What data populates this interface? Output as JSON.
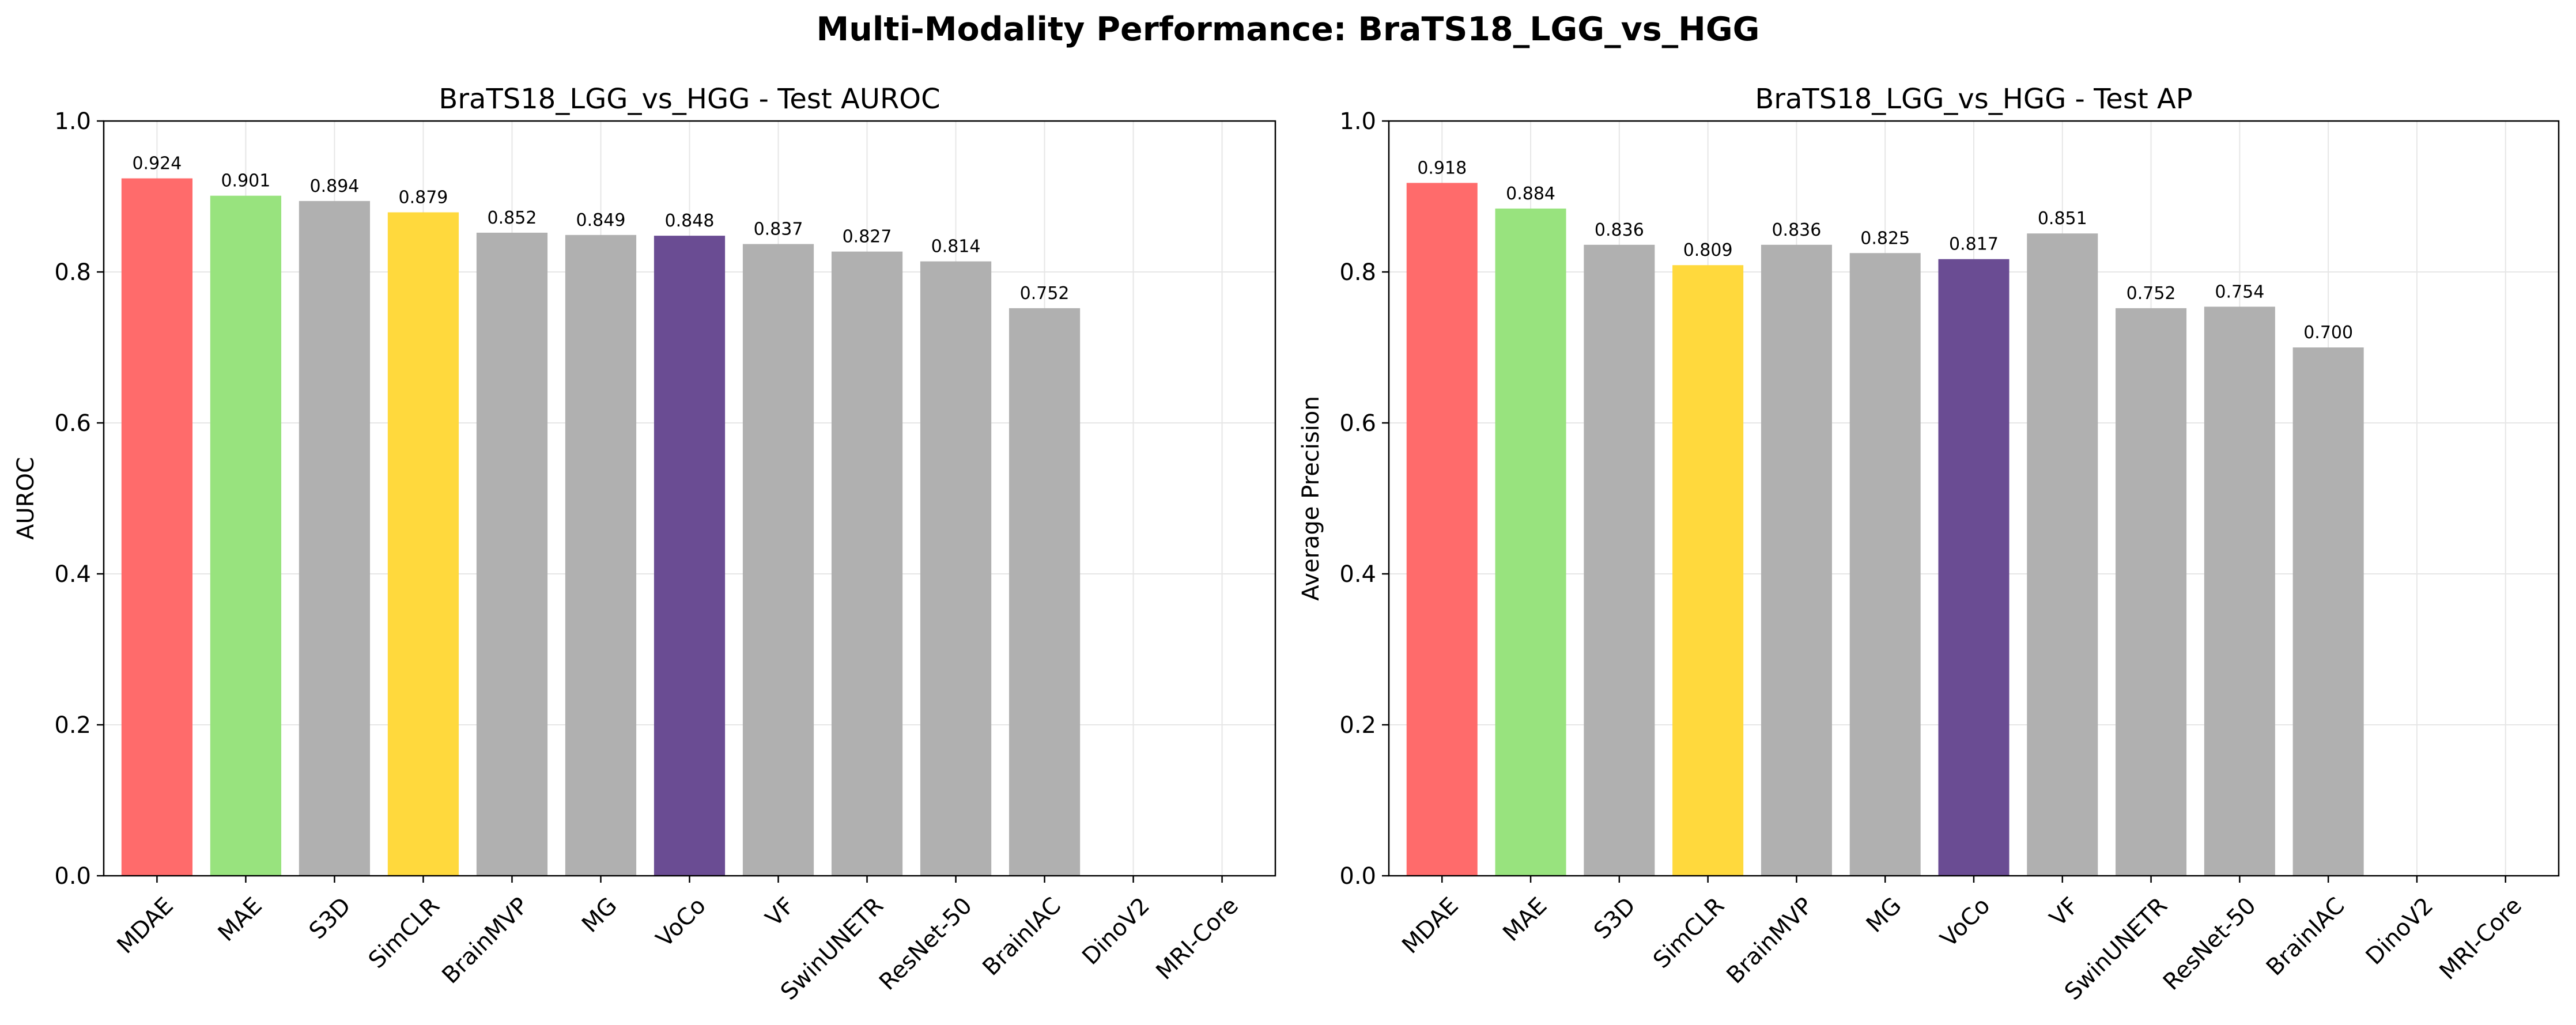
{
  "suptitle": "Multi-Modality Performance: BraTS18_LGG_vs_HGG",
  "colors": {
    "MDAE": "#ff6b6b",
    "MAE": "#98e37e",
    "SimCLR": "#ffd93d",
    "VoCo": "#6a4c93",
    "default": "#b0b0b0"
  },
  "chart_data": [
    {
      "type": "bar",
      "title": "BraTS18_LGG_vs_HGG - Test AUROC",
      "xlabel": "",
      "ylabel": "AUROC",
      "ylim": [
        0,
        1.0
      ],
      "yticks": [
        "0.0",
        "0.2",
        "0.4",
        "0.6",
        "0.8",
        "1.0"
      ],
      "grid": true,
      "categories": [
        "MDAE",
        "MAE",
        "S3D",
        "SimCLR",
        "BrainMVP",
        "MG",
        "VoCo",
        "VF",
        "SwinUNETR",
        "ResNet-50",
        "BrainIAC",
        "DinoV2",
        "MRI-Core"
      ],
      "values": [
        0.924,
        0.901,
        0.894,
        0.879,
        0.852,
        0.849,
        0.848,
        0.837,
        0.827,
        0.814,
        0.752,
        null,
        null
      ],
      "labels": [
        "0.924",
        "0.901",
        "0.894",
        "0.879",
        "0.852",
        "0.849",
        "0.848",
        "0.837",
        "0.827",
        "0.814",
        "0.752",
        "",
        ""
      ]
    },
    {
      "type": "bar",
      "title": "BraTS18_LGG_vs_HGG - Test AP",
      "xlabel": "",
      "ylabel": "Average Precision",
      "ylim": [
        0,
        1.0
      ],
      "yticks": [
        "0.0",
        "0.2",
        "0.4",
        "0.6",
        "0.8",
        "1.0"
      ],
      "grid": true,
      "categories": [
        "MDAE",
        "MAE",
        "S3D",
        "SimCLR",
        "BrainMVP",
        "MG",
        "VoCo",
        "VF",
        "SwinUNETR",
        "ResNet-50",
        "BrainIAC",
        "DinoV2",
        "MRI-Core"
      ],
      "values": [
        0.918,
        0.884,
        0.836,
        0.809,
        0.836,
        0.825,
        0.817,
        0.851,
        0.752,
        0.754,
        0.7,
        null,
        null
      ],
      "labels": [
        "0.918",
        "0.884",
        "0.836",
        "0.809",
        "0.836",
        "0.825",
        "0.817",
        "0.851",
        "0.752",
        "0.754",
        "0.700",
        "",
        ""
      ]
    }
  ]
}
